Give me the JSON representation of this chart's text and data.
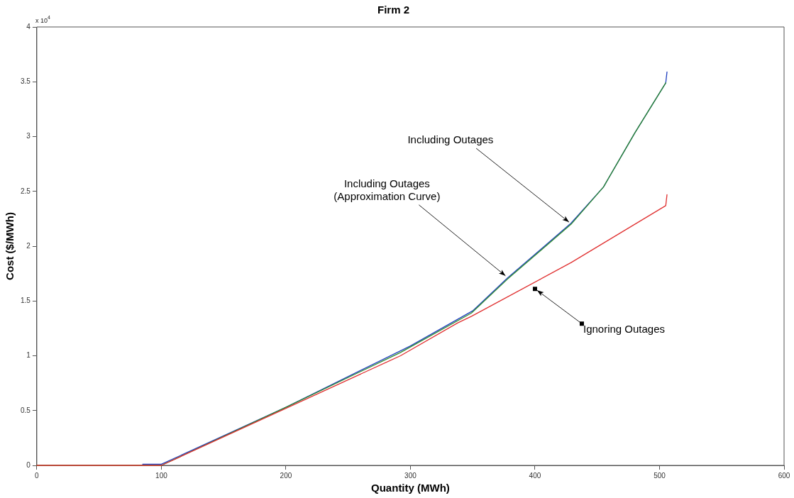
{
  "chart_data": {
    "type": "line",
    "title": "Firm 2",
    "xlabel": "Quantity (MWh)",
    "ylabel": "Cost ($/MWh)",
    "xlim": [
      0,
      600
    ],
    "xticks": [
      0,
      100,
      200,
      300,
      400,
      500,
      600
    ],
    "ylim": [
      0,
      4
    ],
    "yticks": [
      0,
      0.5,
      1,
      1.5,
      2,
      2.5,
      3,
      3.5,
      4
    ],
    "grid": false,
    "legend": false,
    "marker": "none",
    "line_style": "solid",
    "series": [
      {
        "color": "#1f3fbf",
        "x": [
          85,
          100,
          200,
          300,
          350,
          378,
          429,
          455,
          480,
          505,
          506
        ],
        "values": [
          0.01,
          0.01,
          0.53,
          1.09,
          1.41,
          1.71,
          2.21,
          2.54,
          3.03,
          3.49,
          3.59
        ]
      },
      {
        "color": "#2e8b2e",
        "x": [
          0,
          100,
          200,
          292,
          349,
          378,
          429,
          455,
          480,
          505
        ],
        "values": [
          0,
          0,
          0.53,
          1.03,
          1.39,
          1.7,
          2.2,
          2.54,
          3.03,
          3.49
        ]
      },
      {
        "color": "#e03030",
        "x": [
          0,
          100,
          200,
          292,
          338,
          349,
          429,
          505,
          506
        ],
        "values": [
          0,
          0,
          0.52,
          1.0,
          1.3,
          1.36,
          1.85,
          2.37,
          2.47
        ]
      }
    ],
    "annotations": [
      "x 10$^{4}$",
      {
        "text": "Including Outages",
        "x": 429,
        "y": 2.2
      },
      {
        "text": "Including Outages\n(Approximation Curve)",
        "x": 378,
        "y": 1.71
      },
      {
        "text": "Ignoring Outages",
        "x": 400,
        "y": 1.61
      }
    ]
  }
}
